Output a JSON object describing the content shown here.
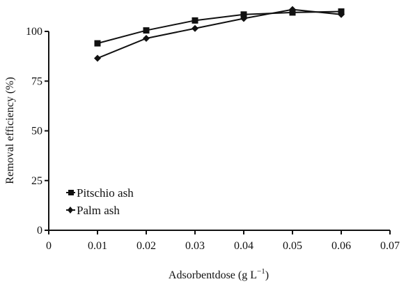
{
  "chart_data": {
    "type": "line",
    "title": "",
    "xlabel_main": "Adsorbentdose (g L",
    "xlabel_exp": "−1",
    "xlabel_close": ")",
    "ylabel": "Removal efficiency (%)",
    "xlim": [
      0,
      0.07
    ],
    "ylim": [
      0,
      100
    ],
    "x_ticks": [
      0,
      0.01,
      0.02,
      0.03,
      0.04,
      0.05,
      0.06,
      0.07
    ],
    "x_tick_labels": [
      "0",
      "0.01",
      "0.02",
      "0.03",
      "0.04",
      "0.05",
      "0.06",
      "0.07"
    ],
    "y_ticks": [
      0,
      25,
      50,
      75,
      100
    ],
    "y_tick_labels": [
      "0",
      "25",
      "50",
      "75",
      "100"
    ],
    "grid": false,
    "legend_position": "lower-left",
    "series": [
      {
        "name": "Pitschio ash",
        "marker": "square",
        "x": [
          0.01,
          0.02,
          0.03,
          0.04,
          0.05,
          0.06
        ],
        "values": [
          94,
          100.5,
          105.5,
          108.5,
          109.5,
          110
        ]
      },
      {
        "name": "Palm ash",
        "marker": "diamond",
        "x": [
          0.01,
          0.02,
          0.03,
          0.04,
          0.05,
          0.06
        ],
        "values": [
          86.5,
          96.5,
          101.5,
          106.5,
          111,
          108.5
        ]
      }
    ],
    "colors": {
      "line": "#111111",
      "axis": "#111111"
    }
  }
}
